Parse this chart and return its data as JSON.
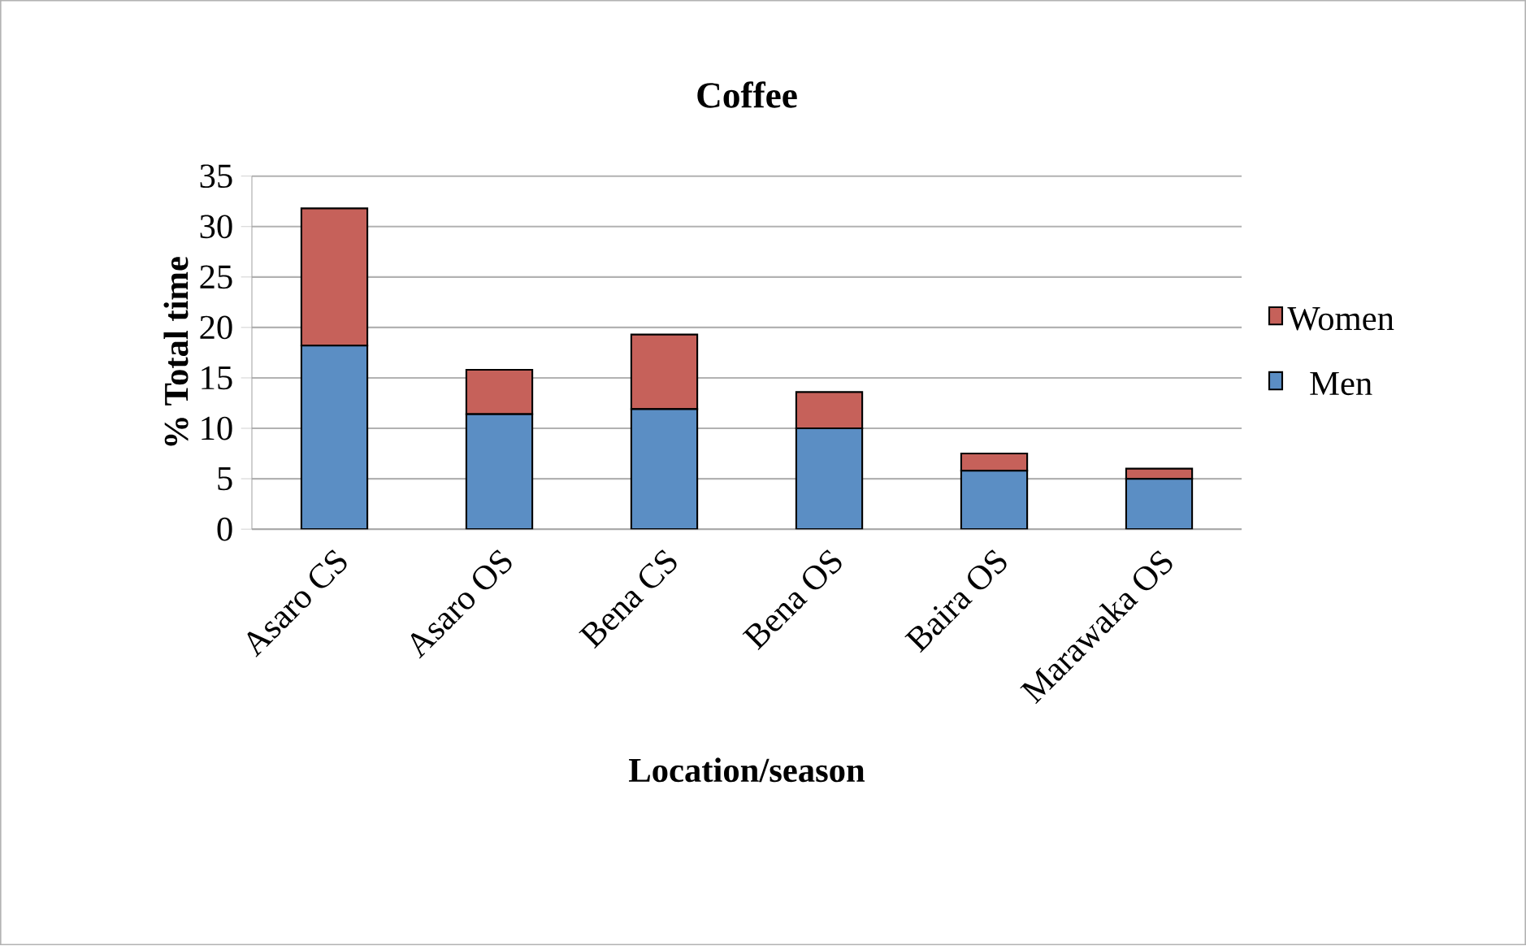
{
  "chart_data": {
    "type": "bar",
    "title": "Coffee",
    "xlabel": "Location/season",
    "ylabel": "% Total time",
    "categories": [
      "Asaro CS",
      "Asaro OS",
      "Bena CS",
      "Bena OS",
      "Baira OS",
      "Marawaka OS"
    ],
    "stacked": true,
    "series": [
      {
        "name": "Men",
        "color": "#5b8ec4",
        "values": [
          18.2,
          11.4,
          11.9,
          10.0,
          5.8,
          5.0
        ]
      },
      {
        "name": "Women",
        "color": "#c6615a",
        "values": [
          13.6,
          4.4,
          7.4,
          3.6,
          1.7,
          1.0
        ]
      }
    ],
    "ylim": [
      0,
      35
    ],
    "yticks": [
      0,
      5,
      10,
      15,
      20,
      25,
      30,
      35
    ],
    "grid": "y",
    "legend": "right"
  }
}
